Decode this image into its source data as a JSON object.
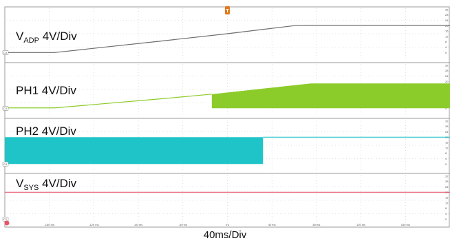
{
  "chart_data": {
    "type": "line",
    "title": "",
    "xlabel": "40ms/Div",
    "x_unit": "ms",
    "xlim": [
      -200,
      200
    ],
    "trigger_marker": "T",
    "x_tick_labels": [
      "-160 ms",
      "-120 ms",
      "-80 ms",
      "-40 ms",
      "0 s",
      "40 ms",
      "80 ms",
      "120 ms",
      "160 ms"
    ],
    "y_tick_labels": [
      "32",
      "28",
      "24",
      "20",
      "16",
      "12",
      "8",
      "4",
      "0"
    ],
    "grid": true,
    "panels": [
      {
        "name_main": "V",
        "name_sub": "ADP",
        "scale": " 4V/Div",
        "channel_marker": "C3",
        "color": "#6d6d6d",
        "style": "line",
        "series": {
          "x": [
            -200,
            -155,
            -60,
            0,
            60,
            75,
            200
          ],
          "y": [
            0,
            0,
            8.5,
            14,
            20,
            20.2,
            20.2
          ]
        }
      },
      {
        "name_main": "PH1",
        "name_sub": "",
        "scale": " 4V/Div",
        "channel_marker": "C4",
        "color": "#8ccc2a",
        "style": "line+switching",
        "series": {
          "x": [
            -200,
            -155,
            -60,
            -14,
            75,
            200
          ],
          "y": [
            0.3,
            0.3,
            7,
            10.5,
            18.5,
            18.5
          ]
        },
        "switching_window": [
          -14,
          200
        ]
      },
      {
        "name_main": "PH2",
        "name_sub": "",
        "scale": " 4V/Div",
        "channel_marker": "C4",
        "color": "#1ec4c8",
        "style": "switching+line",
        "switching_window": [
          -200,
          32
        ],
        "switch_high": 20,
        "switch_low": 0,
        "series": {
          "x": [
            32,
            200
          ],
          "y": [
            20,
            20
          ]
        }
      },
      {
        "name_main": "V",
        "name_sub": "SYS",
        "scale": " 4V/Div",
        "channel_marker": "C1",
        "color": "#e8556a",
        "style": "line",
        "series": {
          "x": [
            -200,
            200
          ],
          "y": [
            20,
            20
          ]
        }
      }
    ]
  }
}
